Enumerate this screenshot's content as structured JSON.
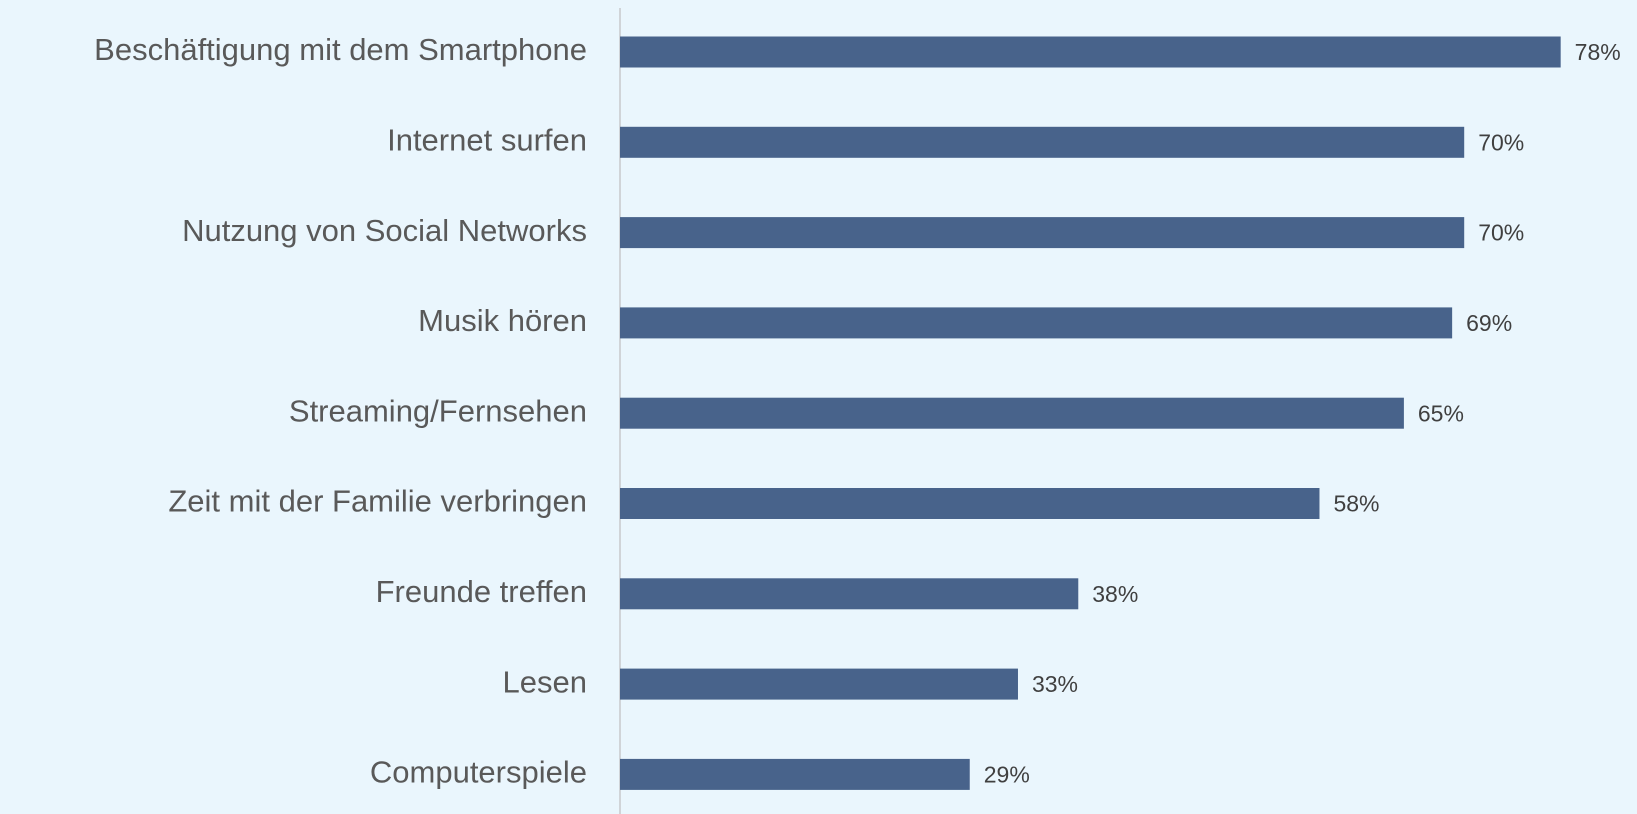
{
  "chart_data": {
    "type": "bar",
    "orientation": "horizontal",
    "categories": [
      "Beschäftigung mit dem Smartphone",
      "Internet surfen",
      "Nutzung von Social Networks",
      "Musik hören",
      "Streaming/Fernsehen",
      "Zeit mit der Familie verbringen",
      "Freunde treffen",
      "Lesen",
      "Computerspiele"
    ],
    "values": [
      78,
      70,
      70,
      69,
      65,
      58,
      38,
      33,
      29
    ],
    "value_labels": [
      "78%",
      "70%",
      "70%",
      "69%",
      "65%",
      "58%",
      "38%",
      "33%",
      "29%"
    ],
    "color": "#48638b"
  }
}
